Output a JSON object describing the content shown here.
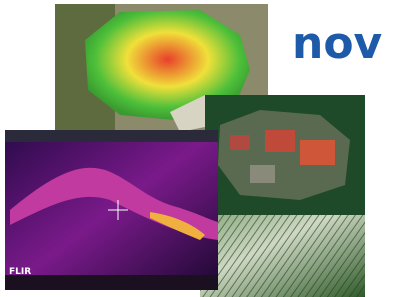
{
  "logo": {
    "text": "nov"
  },
  "thermal": {
    "brand": "FLIR"
  }
}
